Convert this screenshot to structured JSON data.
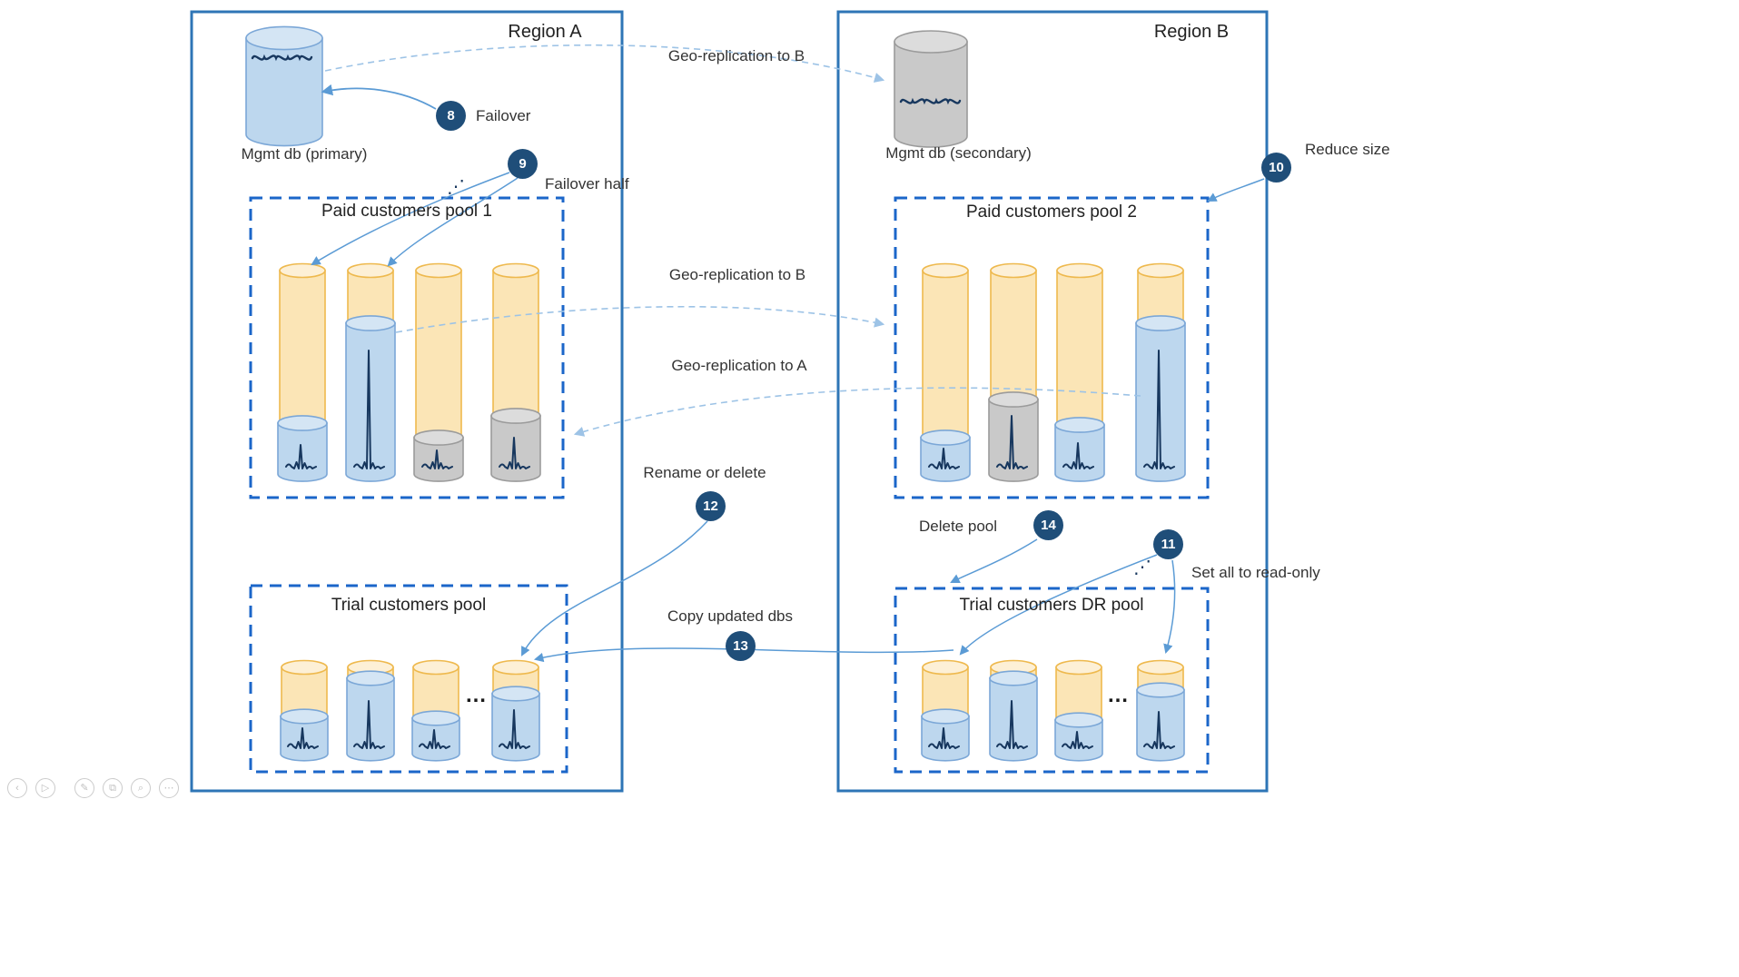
{
  "region_a": {
    "title": "Region A",
    "mgmt_db": "Mgmt db (primary)",
    "paid_pool": "Paid customers pool 1",
    "trial_pool": "Trial customers pool"
  },
  "region_b": {
    "title": "Region B",
    "mgmt_db": "Mgmt db (secondary)",
    "paid_pool": "Paid customers pool 2",
    "trial_pool": "Trial customers DR pool"
  },
  "labels": {
    "geo_rep_b_top": "Geo-replication to B",
    "geo_rep_b_mid": "Geo-replication to B",
    "geo_rep_a": "Geo-replication to A"
  },
  "steps": {
    "s8": {
      "num": "8",
      "label": "Failover"
    },
    "s9": {
      "num": "9",
      "label": "Failover half"
    },
    "s10": {
      "num": "10",
      "label": "Reduce size"
    },
    "s11": {
      "num": "11",
      "label": "Set all to read-only"
    },
    "s12": {
      "num": "12",
      "label": "Rename or delete"
    },
    "s13": {
      "num": "13",
      "label": "Copy updated dbs"
    },
    "s14": {
      "num": "14",
      "label": "Delete pool"
    }
  },
  "glyphs": {
    "dots_h": "…",
    "dots_diag": "⋰"
  },
  "toolbar": {
    "items": [
      {
        "name": "previous",
        "glyph": "‹"
      },
      {
        "name": "play",
        "glyph": "▷"
      },
      {
        "name": "pen",
        "glyph": "✎"
      },
      {
        "name": "copy",
        "glyph": "⧉"
      },
      {
        "name": "zoom",
        "glyph": "⌕"
      },
      {
        "name": "more",
        "glyph": "⋯"
      }
    ]
  },
  "colors": {
    "region_border": "#2E75B6",
    "pool_border": "#1B66C9",
    "badge": "#1F4E79",
    "arrow_solid": "#5B9BD5",
    "arrow_dashed": "#9DC3E6",
    "cylinder_orange": "#FBE5B6",
    "cylinder_blue": "#BDD7EE",
    "cylinder_gray": "#C9C9C9",
    "waveform_navy": "#17375E"
  }
}
